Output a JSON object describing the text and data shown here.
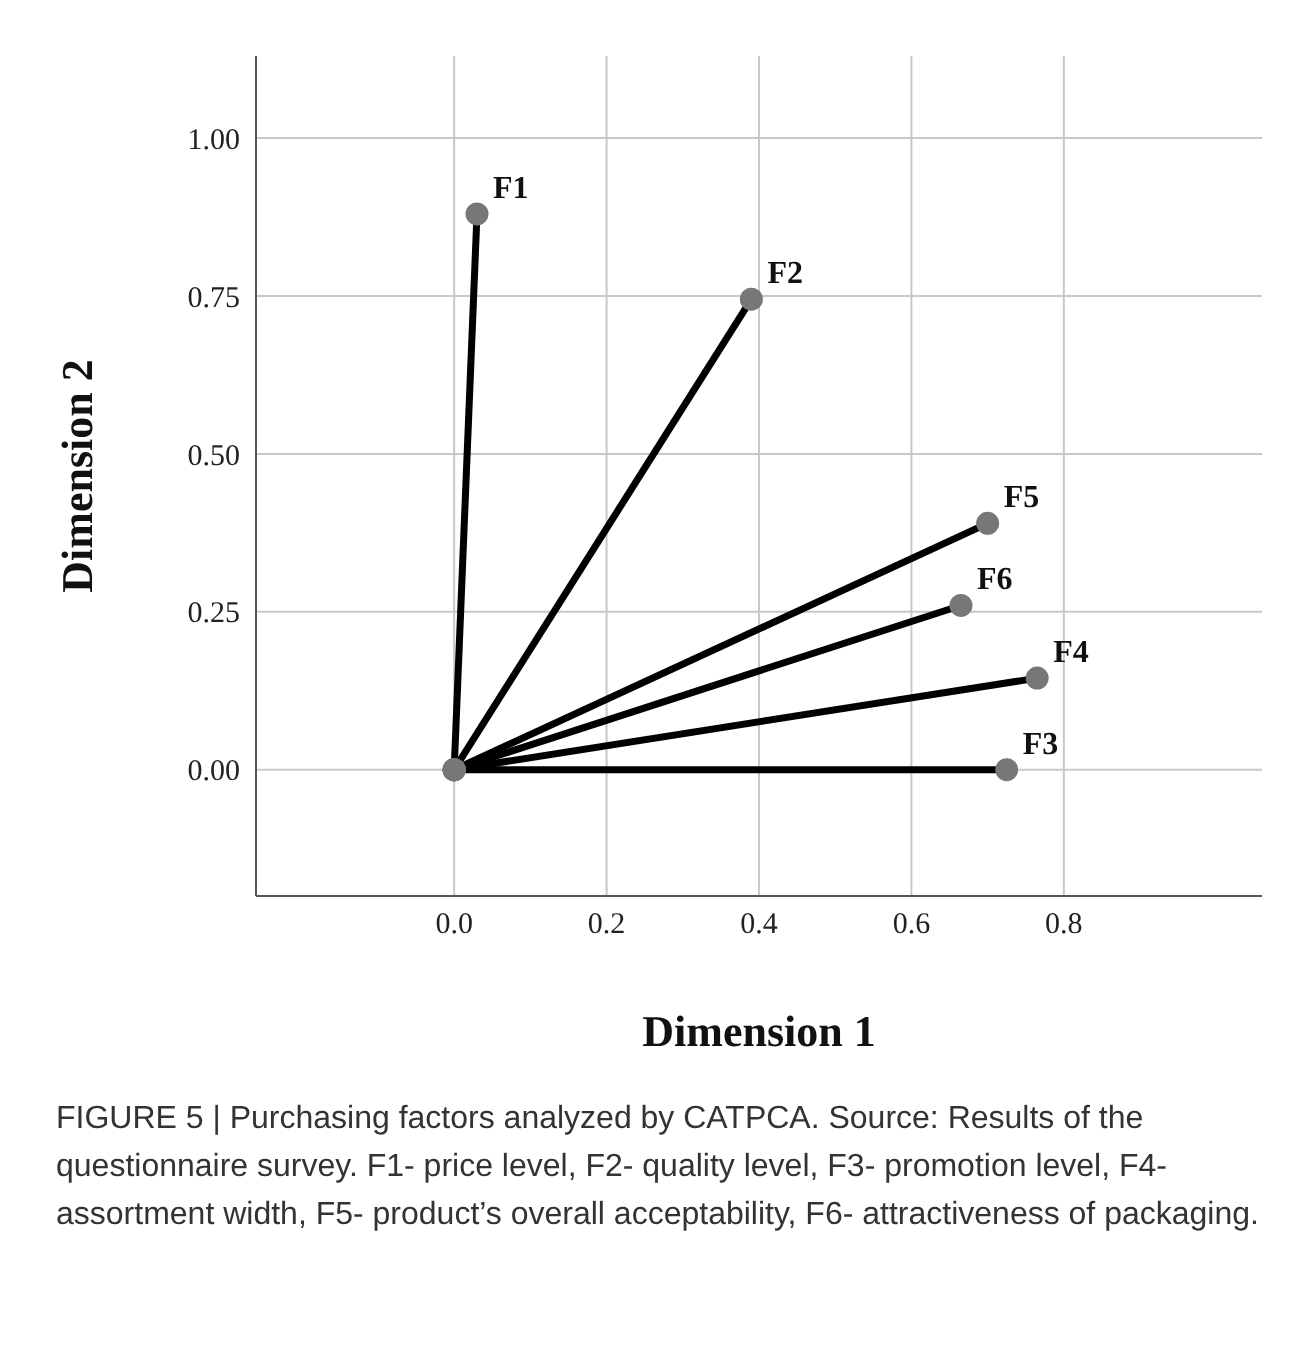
{
  "chart_data": {
    "type": "line",
    "xlabel": "Dimension 1",
    "ylabel": "Dimension 2",
    "series": [
      {
        "name": "F1",
        "color": "#000000",
        "x": [
          0,
          0.03
        ],
        "values": [
          0,
          0.88
        ]
      },
      {
        "name": "F2",
        "color": "#000000",
        "x": [
          0,
          0.39
        ],
        "values": [
          0,
          0.745
        ]
      },
      {
        "name": "F3",
        "color": "#000000",
        "x": [
          0,
          0.725
        ],
        "values": [
          0,
          0
        ]
      },
      {
        "name": "F4",
        "color": "#000000",
        "x": [
          0,
          0.765
        ],
        "values": [
          0,
          0.145
        ]
      },
      {
        "name": "F5",
        "color": "#000000",
        "x": [
          0,
          0.7
        ],
        "values": [
          0,
          0.39
        ]
      },
      {
        "name": "F6",
        "color": "#000000",
        "x": [
          0,
          0.665
        ],
        "values": [
          0,
          0.26
        ]
      }
    ],
    "xlim": [
      -0.26,
      1.06
    ],
    "ylim": [
      -0.2,
      1.13
    ],
    "xticks": [
      {
        "value": 0,
        "label": "0.0"
      },
      {
        "value": 0.2,
        "label": "0.2"
      },
      {
        "value": 0.4,
        "label": "0.4"
      },
      {
        "value": 0.6,
        "label": "0.6"
      },
      {
        "value": 0.8,
        "label": "0.8"
      }
    ],
    "yticks": [
      {
        "value": 0,
        "label": "0.00"
      },
      {
        "value": 0.25,
        "label": "0.25"
      },
      {
        "value": 0.5,
        "label": "0.50"
      },
      {
        "value": 0.75,
        "label": "0.75"
      },
      {
        "value": 1,
        "label": "1.00"
      }
    ],
    "grid": true,
    "marker": "circle",
    "line_style": "solid",
    "legend": false,
    "annotations": [
      "FIGURE 5 | Purchasing factors analyzed by CATPCA. Source: Results of the questionnaire survey. F1- price level, F2- quality level, F3- promotion level, F4- assortment width, F5- product’s overall acceptability, F6- attractiveness of packaging."
    ]
  }
}
